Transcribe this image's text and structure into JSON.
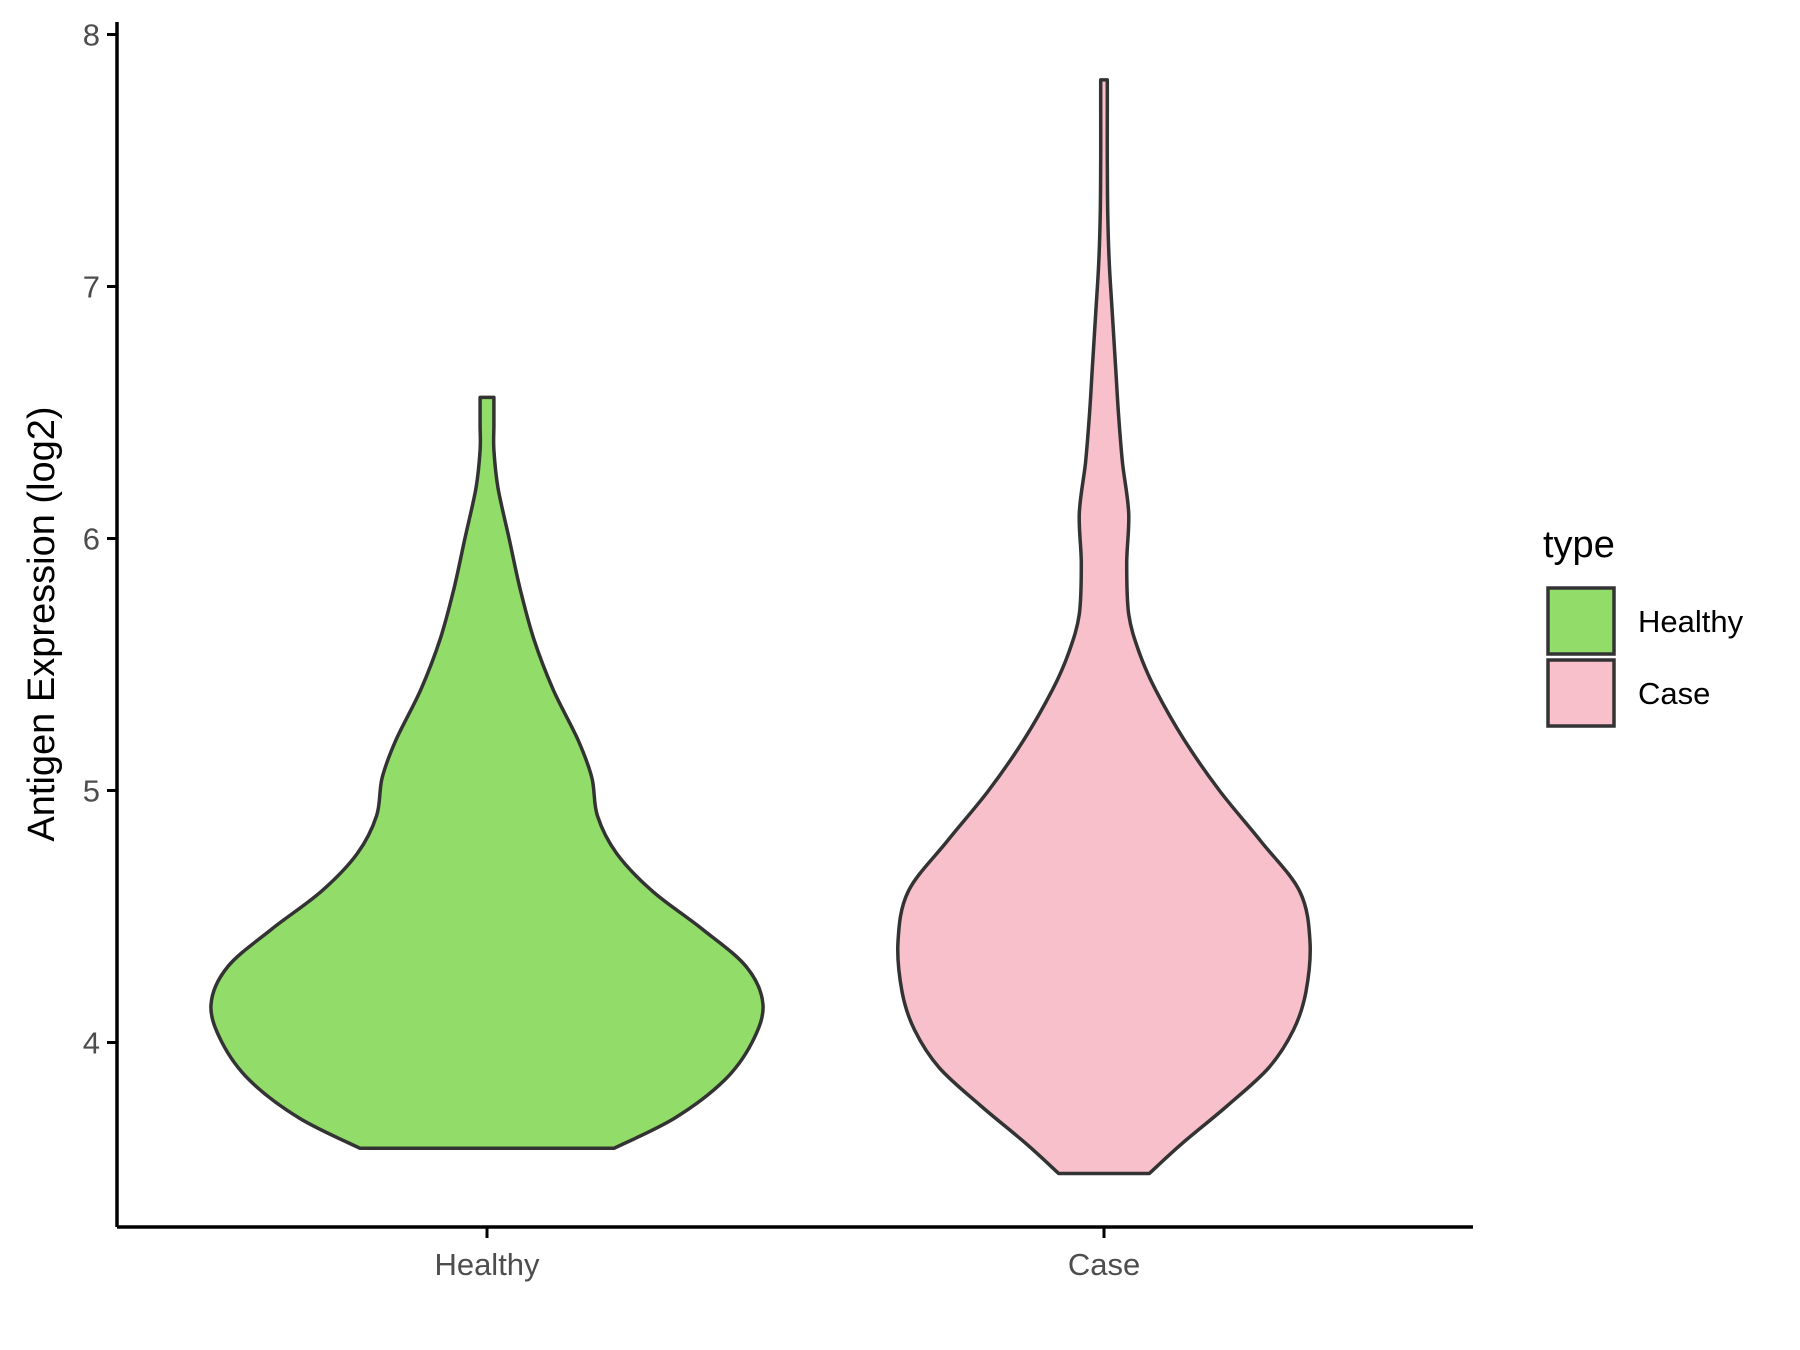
{
  "chart_data": {
    "type": "violin",
    "xlabel": "",
    "ylabel": "Antigen Expression (log2)",
    "categories": [
      "Healthy",
      "Case"
    ],
    "ylim": [
      3.3,
      8.05
    ],
    "yticks": [
      4,
      5,
      6,
      7,
      8
    ],
    "grid": false,
    "legend": {
      "title": "type",
      "position": "right",
      "entries": [
        {
          "label": "Healthy",
          "color": "#92dc6a"
        },
        {
          "label": "Case",
          "color": "#f7c0cb"
        }
      ]
    },
    "outline_color": "#333333",
    "series": [
      {
        "name": "Healthy",
        "color": "#92dc6a",
        "min": 3.58,
        "max": 6.56,
        "density_profile": [
          [
            3.58,
            0.46
          ],
          [
            3.7,
            0.68
          ],
          [
            3.85,
            0.86
          ],
          [
            4.0,
            0.96
          ],
          [
            4.15,
            1.0
          ],
          [
            4.3,
            0.94
          ],
          [
            4.45,
            0.78
          ],
          [
            4.6,
            0.6
          ],
          [
            4.75,
            0.47
          ],
          [
            4.9,
            0.4
          ],
          [
            5.05,
            0.38
          ],
          [
            5.2,
            0.33
          ],
          [
            5.4,
            0.24
          ],
          [
            5.6,
            0.17
          ],
          [
            5.8,
            0.12
          ],
          [
            6.0,
            0.08
          ],
          [
            6.2,
            0.04
          ],
          [
            6.35,
            0.025
          ],
          [
            6.45,
            0.025
          ],
          [
            6.56,
            0.025
          ]
        ]
      },
      {
        "name": "Case",
        "color": "#f7c0cb",
        "min": 3.48,
        "max": 7.82,
        "density_profile": [
          [
            3.48,
            0.22
          ],
          [
            3.6,
            0.38
          ],
          [
            3.75,
            0.6
          ],
          [
            3.9,
            0.8
          ],
          [
            4.05,
            0.92
          ],
          [
            4.2,
            0.98
          ],
          [
            4.4,
            1.0
          ],
          [
            4.6,
            0.95
          ],
          [
            4.8,
            0.76
          ],
          [
            5.0,
            0.56
          ],
          [
            5.2,
            0.39
          ],
          [
            5.4,
            0.25
          ],
          [
            5.55,
            0.17
          ],
          [
            5.7,
            0.12
          ],
          [
            5.9,
            0.11
          ],
          [
            6.1,
            0.12
          ],
          [
            6.3,
            0.09
          ],
          [
            6.5,
            0.07
          ],
          [
            6.7,
            0.055
          ],
          [
            6.9,
            0.04
          ],
          [
            7.1,
            0.025
          ],
          [
            7.3,
            0.018
          ],
          [
            7.5,
            0.016
          ],
          [
            7.7,
            0.016
          ],
          [
            7.82,
            0.016
          ]
        ]
      }
    ]
  }
}
